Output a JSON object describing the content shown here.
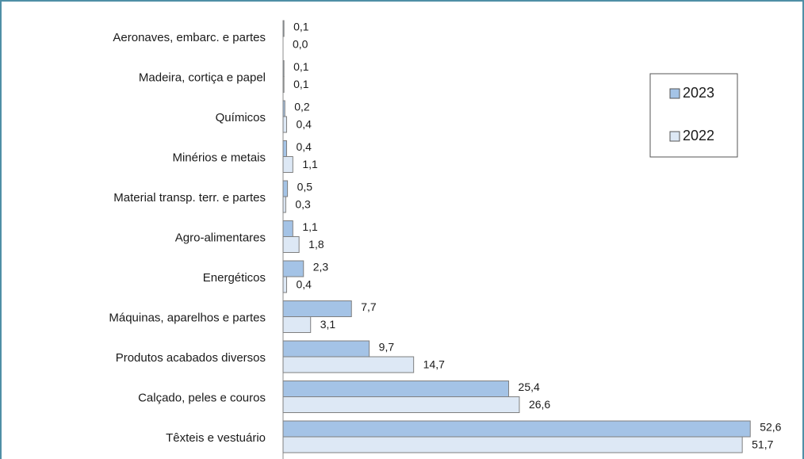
{
  "chart_data": {
    "type": "hbar",
    "categories": [
      "Aeronaves, embarc. e partes",
      "Madeira, cortiça e papel",
      "Químicos",
      "Minérios e metais",
      "Material transp. terr. e partes",
      "Agro-alimentares",
      "Energéticos",
      "Máquinas, aparelhos e partes",
      "Produtos acabados diversos",
      "Calçado, peles e couros",
      "Têxteis e vestuário"
    ],
    "series": [
      {
        "name": "2023",
        "color": "#a4c3e6",
        "values": [
          0.1,
          0.1,
          0.2,
          0.4,
          0.5,
          1.1,
          2.3,
          7.7,
          9.7,
          25.4,
          52.6
        ],
        "value_labels": [
          "0,1",
          "0,1",
          "0,2",
          "0,4",
          "0,5",
          "1,1",
          "2,3",
          "7,7",
          "9,7",
          "25,4",
          "52,6"
        ]
      },
      {
        "name": "2022",
        "color": "#dde8f5",
        "values": [
          0.0,
          0.1,
          0.4,
          1.1,
          0.3,
          1.8,
          0.4,
          3.1,
          14.7,
          26.6,
          51.7
        ],
        "value_labels": [
          "0,0",
          "0,1",
          "0,4",
          "1,1",
          "0,3",
          "1,8",
          "0,4",
          "3,1",
          "14,7",
          "26,6",
          "51,7"
        ]
      }
    ],
    "xlim": [
      0,
      57.4
    ],
    "legend": "upper right"
  }
}
